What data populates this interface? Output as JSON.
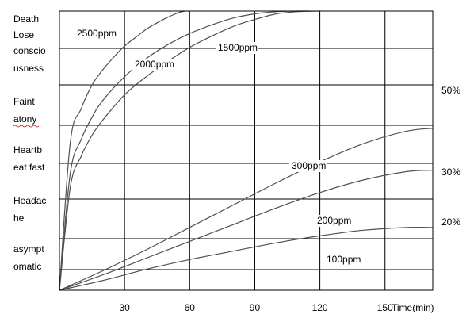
{
  "chart_data": {
    "type": "line",
    "title": "",
    "xlabel": "Time(min)",
    "ylabel": "",
    "xlim": [
      0,
      172
    ],
    "ylim": [
      0,
      1
    ],
    "xticks": [
      30,
      60,
      90,
      120,
      150
    ],
    "grid": true,
    "y_categories": [
      {
        "lines": [
          "asympt",
          "omatic"
        ]
      },
      {
        "lines": [
          "Headac",
          "he"
        ]
      },
      {
        "lines": [
          "Heartb",
          "eat fast"
        ]
      },
      {
        "lines": [
          "Faint",
          "atony"
        ]
      },
      {
        "lines": [
          "Death",
          "Lose",
          "conscio",
          "usness"
        ]
      }
    ],
    "right_labels": [
      "50%",
      "30%",
      "20%"
    ],
    "series": [
      {
        "name": "2500ppm",
        "x": [
          0,
          5,
          10,
          15,
          20,
          25,
          30,
          35,
          40,
          45,
          50,
          55,
          58
        ],
        "y": [
          0,
          0.53,
          0.65,
          0.735,
          0.79,
          0.835,
          0.875,
          0.905,
          0.935,
          0.958,
          0.978,
          0.995,
          1.0
        ]
      },
      {
        "name": "2000ppm",
        "x": [
          0,
          5,
          10,
          15,
          20,
          30,
          40,
          50,
          60,
          70,
          80,
          90,
          100,
          110,
          115
        ],
        "y": [
          0,
          0.42,
          0.54,
          0.62,
          0.68,
          0.765,
          0.83,
          0.88,
          0.92,
          0.95,
          0.975,
          0.99,
          0.998,
          1.0,
          1.0
        ]
      },
      {
        "name": "1500ppm",
        "x": [
          0,
          5,
          10,
          15,
          20,
          30,
          40,
          50,
          60,
          70,
          80,
          90,
          100,
          110,
          120
        ],
        "y": [
          0,
          0.37,
          0.48,
          0.555,
          0.61,
          0.7,
          0.765,
          0.82,
          0.87,
          0.91,
          0.945,
          0.97,
          0.99,
          0.998,
          1.0
        ]
      },
      {
        "name": "300ppm",
        "x": [
          0,
          20,
          40,
          60,
          80,
          100,
          120,
          140,
          160,
          172
        ],
        "y": [
          0,
          0.07,
          0.145,
          0.225,
          0.305,
          0.385,
          0.46,
          0.525,
          0.57,
          0.58
        ]
      },
      {
        "name": "200ppm",
        "x": [
          0,
          20,
          40,
          60,
          80,
          100,
          120,
          140,
          160,
          172
        ],
        "y": [
          0,
          0.055,
          0.115,
          0.175,
          0.235,
          0.295,
          0.35,
          0.395,
          0.425,
          0.43
        ]
      },
      {
        "name": "100ppm",
        "x": [
          0,
          20,
          40,
          60,
          80,
          100,
          120,
          140,
          160,
          172
        ],
        "y": [
          0,
          0.035,
          0.075,
          0.11,
          0.14,
          0.17,
          0.195,
          0.215,
          0.225,
          0.225
        ]
      }
    ]
  }
}
